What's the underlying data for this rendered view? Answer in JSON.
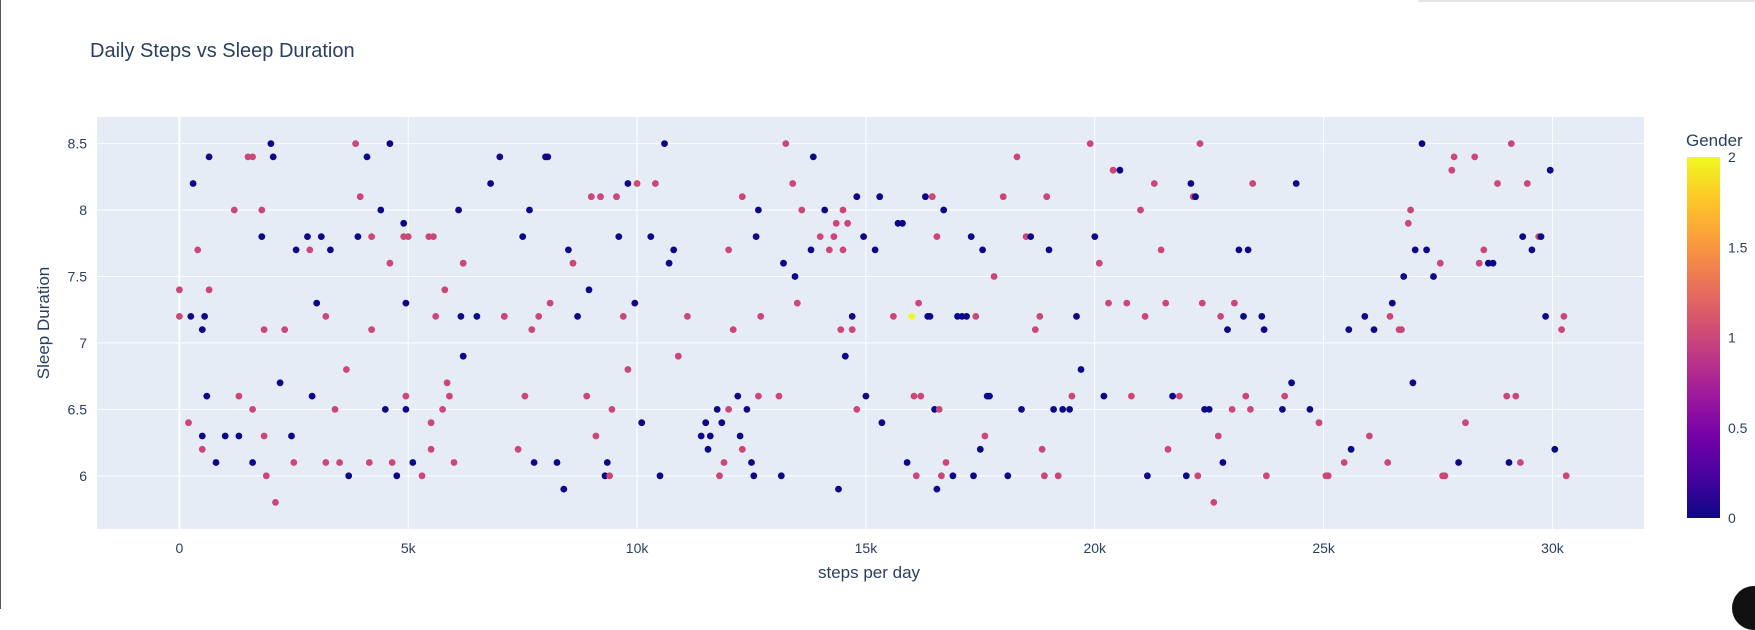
{
  "chart_data": {
    "type": "scatter",
    "title": "Daily Steps vs Sleep Duration",
    "xlabel": "steps per day",
    "ylabel": "Sleep Duration",
    "xlim": [
      -1800,
      32000
    ],
    "ylim": [
      5.6,
      8.7
    ],
    "x_ticks": [
      0,
      5000,
      10000,
      15000,
      20000,
      25000,
      30000
    ],
    "x_tick_labels": [
      "0",
      "5k",
      "10k",
      "15k",
      "20k",
      "25k",
      "30k"
    ],
    "y_ticks": [
      6,
      6.5,
      7,
      7.5,
      8,
      8.5
    ],
    "y_tick_labels": [
      "6",
      "6.5",
      "7",
      "7.5",
      "8",
      "8.5"
    ],
    "grid": true,
    "colorbar": {
      "title": "Gender",
      "range": [
        0,
        2
      ],
      "ticks": [
        0,
        0.5,
        1,
        1.5,
        2
      ],
      "tick_labels": [
        "0",
        "0.5",
        "1",
        "1.5",
        "2"
      ],
      "colors": [
        "#0d0887",
        "#46039f",
        "#7201a8",
        "#9c179e",
        "#bd3786",
        "#d8576b",
        "#ed7953",
        "#fb9f3a",
        "#fdca26",
        "#f0f921"
      ]
    },
    "marker_colors": {
      "0": "#0d0887",
      "1": "#cc4778",
      "2": "#f0f921"
    },
    "points": [
      [
        0,
        7.2,
        1
      ],
      [
        0,
        7.4,
        1
      ],
      [
        200,
        6.4,
        1
      ],
      [
        250,
        7.2,
        0
      ],
      [
        300,
        8.2,
        0
      ],
      [
        400,
        7.7,
        1
      ],
      [
        500,
        6.2,
        1
      ],
      [
        500,
        6.3,
        0
      ],
      [
        500,
        7.1,
        0
      ],
      [
        550,
        7.2,
        0
      ],
      [
        600,
        6.6,
        0
      ],
      [
        650,
        7.4,
        1
      ],
      [
        650,
        8.4,
        0
      ],
      [
        800,
        6.1,
        0
      ],
      [
        1000,
        6.3,
        0
      ],
      [
        1200,
        8.0,
        1
      ],
      [
        1300,
        6.6,
        1
      ],
      [
        1300,
        6.3,
        0
      ],
      [
        1500,
        8.4,
        1
      ],
      [
        1600,
        8.4,
        1
      ],
      [
        1600,
        6.5,
        1
      ],
      [
        1600,
        6.1,
        0
      ],
      [
        1800,
        8.0,
        1
      ],
      [
        1800,
        7.8,
        0
      ],
      [
        1850,
        7.1,
        1
      ],
      [
        1850,
        6.3,
        1
      ],
      [
        1900,
        6.0,
        1
      ],
      [
        2000,
        8.5,
        0
      ],
      [
        2050,
        8.4,
        0
      ],
      [
        2100,
        5.8,
        1
      ],
      [
        2200,
        6.7,
        0
      ],
      [
        2300,
        7.1,
        1
      ],
      [
        2450,
        6.3,
        0
      ],
      [
        2500,
        6.1,
        1
      ],
      [
        2550,
        7.7,
        0
      ],
      [
        2800,
        7.8,
        0
      ],
      [
        2850,
        7.7,
        1
      ],
      [
        2900,
        6.6,
        0
      ],
      [
        3000,
        7.3,
        0
      ],
      [
        3100,
        7.8,
        0
      ],
      [
        3200,
        6.1,
        1
      ],
      [
        3200,
        7.2,
        1
      ],
      [
        3300,
        7.7,
        0
      ],
      [
        3400,
        6.5,
        1
      ],
      [
        3500,
        6.1,
        1
      ],
      [
        3650,
        6.8,
        1
      ],
      [
        3700,
        6.0,
        0
      ],
      [
        3850,
        8.5,
        1
      ],
      [
        3900,
        7.8,
        0
      ],
      [
        3950,
        8.1,
        1
      ],
      [
        4100,
        8.4,
        0
      ],
      [
        4150,
        6.1,
        1
      ],
      [
        4200,
        7.8,
        1
      ],
      [
        4200,
        7.1,
        1
      ],
      [
        4400,
        8.0,
        0
      ],
      [
        4500,
        6.5,
        0
      ],
      [
        4600,
        8.5,
        0
      ],
      [
        4600,
        7.6,
        1
      ],
      [
        4650,
        6.1,
        1
      ],
      [
        4750,
        6.0,
        0
      ],
      [
        4900,
        7.8,
        1
      ],
      [
        4900,
        7.9,
        0
      ],
      [
        4950,
        7.3,
        0
      ],
      [
        4950,
        6.5,
        0
      ],
      [
        4950,
        6.6,
        1
      ],
      [
        5000,
        7.8,
        1
      ],
      [
        5100,
        6.1,
        0
      ],
      [
        5300,
        6.0,
        1
      ],
      [
        5450,
        7.8,
        1
      ],
      [
        5500,
        6.2,
        1
      ],
      [
        5500,
        6.4,
        1
      ],
      [
        5550,
        7.8,
        1
      ],
      [
        5600,
        7.2,
        1
      ],
      [
        5750,
        6.5,
        1
      ],
      [
        5800,
        7.4,
        1
      ],
      [
        5850,
        6.7,
        1
      ],
      [
        5900,
        6.6,
        1
      ],
      [
        6000,
        6.1,
        1
      ],
      [
        6100,
        8.0,
        0
      ],
      [
        6150,
        7.2,
        0
      ],
      [
        6200,
        6.9,
        0
      ],
      [
        6200,
        7.6,
        1
      ],
      [
        6500,
        7.2,
        0
      ],
      [
        6800,
        8.2,
        0
      ],
      [
        7000,
        8.4,
        0
      ],
      [
        7100,
        7.2,
        1
      ],
      [
        7100,
        7.2,
        1
      ],
      [
        7400,
        6.2,
        1
      ],
      [
        7500,
        7.8,
        0
      ],
      [
        7550,
        6.6,
        1
      ],
      [
        7650,
        8.0,
        0
      ],
      [
        7700,
        7.1,
        1
      ],
      [
        7750,
        6.1,
        0
      ],
      [
        7850,
        7.2,
        1
      ],
      [
        8000,
        8.4,
        0
      ],
      [
        8050,
        8.4,
        0
      ],
      [
        8100,
        7.3,
        1
      ],
      [
        8250,
        6.1,
        0
      ],
      [
        8400,
        5.9,
        0
      ],
      [
        8500,
        7.7,
        0
      ],
      [
        8600,
        7.6,
        1
      ],
      [
        8700,
        7.2,
        0
      ],
      [
        8900,
        6.6,
        1
      ],
      [
        8950,
        7.4,
        0
      ],
      [
        9000,
        8.1,
        1
      ],
      [
        9100,
        6.3,
        1
      ],
      [
        9200,
        8.1,
        1
      ],
      [
        9300,
        6.0,
        0
      ],
      [
        9350,
        6.1,
        0
      ],
      [
        9400,
        6.0,
        1
      ],
      [
        9450,
        6.5,
        1
      ],
      [
        9550,
        8.1,
        1
      ],
      [
        9600,
        7.8,
        0
      ],
      [
        9700,
        7.2,
        1
      ],
      [
        9800,
        8.2,
        0
      ],
      [
        9800,
        6.8,
        1
      ],
      [
        9950,
        7.3,
        0
      ],
      [
        10000,
        8.2,
        1
      ],
      [
        10100,
        6.4,
        0
      ],
      [
        10300,
        7.8,
        0
      ],
      [
        10400,
        8.2,
        1
      ],
      [
        10500,
        6.0,
        0
      ],
      [
        10600,
        8.5,
        0
      ],
      [
        10700,
        7.6,
        0
      ],
      [
        10800,
        7.7,
        0
      ],
      [
        10900,
        6.9,
        1
      ],
      [
        11100,
        7.2,
        1
      ],
      [
        11400,
        6.3,
        0
      ],
      [
        11500,
        6.4,
        0
      ],
      [
        11550,
        6.2,
        0
      ],
      [
        11600,
        6.3,
        0
      ],
      [
        11750,
        6.5,
        0
      ],
      [
        11800,
        6.0,
        1
      ],
      [
        11850,
        6.4,
        0
      ],
      [
        11900,
        6.1,
        1
      ],
      [
        12000,
        7.7,
        1
      ],
      [
        12000,
        6.5,
        1
      ],
      [
        12100,
        7.1,
        1
      ],
      [
        12200,
        6.6,
        0
      ],
      [
        12250,
        6.3,
        0
      ],
      [
        12300,
        8.1,
        1
      ],
      [
        12300,
        6.2,
        1
      ],
      [
        12400,
        6.5,
        0
      ],
      [
        12500,
        6.1,
        0
      ],
      [
        12550,
        6.0,
        0
      ],
      [
        12600,
        7.8,
        0
      ],
      [
        12650,
        8.0,
        0
      ],
      [
        12650,
        6.6,
        1
      ],
      [
        12700,
        7.2,
        1
      ],
      [
        13100,
        6.6,
        1
      ],
      [
        13150,
        6.0,
        0
      ],
      [
        13200,
        7.6,
        0
      ],
      [
        13250,
        8.5,
        1
      ],
      [
        13400,
        8.2,
        1
      ],
      [
        13450,
        7.5,
        0
      ],
      [
        13500,
        7.3,
        1
      ],
      [
        13600,
        8.0,
        1
      ],
      [
        13800,
        7.7,
        0
      ],
      [
        13850,
        8.4,
        0
      ],
      [
        14000,
        7.8,
        1
      ],
      [
        14100,
        8.0,
        0
      ],
      [
        14200,
        7.7,
        1
      ],
      [
        14300,
        7.8,
        1
      ],
      [
        14350,
        7.9,
        1
      ],
      [
        14400,
        5.9,
        0
      ],
      [
        14450,
        7.1,
        1
      ],
      [
        14500,
        7.7,
        1
      ],
      [
        14500,
        8.0,
        1
      ],
      [
        14550,
        6.9,
        0
      ],
      [
        14600,
        7.9,
        1
      ],
      [
        14700,
        7.1,
        1
      ],
      [
        14700,
        7.2,
        0
      ],
      [
        14800,
        8.1,
        0
      ],
      [
        14800,
        6.5,
        1
      ],
      [
        14950,
        7.8,
        0
      ],
      [
        15000,
        6.6,
        0
      ],
      [
        15200,
        7.7,
        0
      ],
      [
        15300,
        8.1,
        0
      ],
      [
        15350,
        6.4,
        0
      ],
      [
        15600,
        7.2,
        1
      ],
      [
        15700,
        7.9,
        0
      ],
      [
        15800,
        7.9,
        0
      ],
      [
        15900,
        6.1,
        0
      ],
      [
        16000,
        7.2,
        2
      ],
      [
        16050,
        6.6,
        1
      ],
      [
        16100,
        6.0,
        1
      ],
      [
        16150,
        7.3,
        1
      ],
      [
        16200,
        6.6,
        1
      ],
      [
        16300,
        8.1,
        0
      ],
      [
        16350,
        7.2,
        0
      ],
      [
        16400,
        7.2,
        0
      ],
      [
        16450,
        8.1,
        1
      ],
      [
        16500,
        6.5,
        0
      ],
      [
        16550,
        7.8,
        1
      ],
      [
        16550,
        5.9,
        0
      ],
      [
        16600,
        6.5,
        1
      ],
      [
        16650,
        6.0,
        1
      ],
      [
        16700,
        8.0,
        0
      ],
      [
        16750,
        6.1,
        1
      ],
      [
        16900,
        6.0,
        0
      ],
      [
        17000,
        7.2,
        0
      ],
      [
        17100,
        7.2,
        0
      ],
      [
        17200,
        7.2,
        0
      ],
      [
        17300,
        7.8,
        0
      ],
      [
        17350,
        6.0,
        0
      ],
      [
        17400,
        7.2,
        1
      ],
      [
        17500,
        6.2,
        0
      ],
      [
        17550,
        7.7,
        0
      ],
      [
        17600,
        6.3,
        1
      ],
      [
        17650,
        6.6,
        0
      ],
      [
        17700,
        6.6,
        0
      ],
      [
        17800,
        7.5,
        1
      ],
      [
        18000,
        8.1,
        1
      ],
      [
        18100,
        6.0,
        0
      ],
      [
        18300,
        8.4,
        1
      ],
      [
        18400,
        6.5,
        0
      ],
      [
        18500,
        7.8,
        1
      ],
      [
        18600,
        7.8,
        0
      ],
      [
        18700,
        7.1,
        1
      ],
      [
        18800,
        7.2,
        1
      ],
      [
        18850,
        6.2,
        1
      ],
      [
        18900,
        6.0,
        1
      ],
      [
        18950,
        8.1,
        1
      ],
      [
        19000,
        7.7,
        0
      ],
      [
        19100,
        6.5,
        0
      ],
      [
        19200,
        6.0,
        1
      ],
      [
        19300,
        6.5,
        0
      ],
      [
        19450,
        6.5,
        0
      ],
      [
        19500,
        6.6,
        1
      ],
      [
        19600,
        7.2,
        0
      ],
      [
        19700,
        6.8,
        0
      ],
      [
        19900,
        8.5,
        1
      ],
      [
        20000,
        7.8,
        0
      ],
      [
        20100,
        7.6,
        1
      ],
      [
        20200,
        6.6,
        0
      ],
      [
        20300,
        7.3,
        1
      ],
      [
        20400,
        8.3,
        1
      ],
      [
        20550,
        8.3,
        0
      ],
      [
        20700,
        7.3,
        1
      ],
      [
        20800,
        6.6,
        1
      ],
      [
        21000,
        8.0,
        1
      ],
      [
        21100,
        7.2,
        1
      ],
      [
        21150,
        6.0,
        0
      ],
      [
        21300,
        8.2,
        1
      ],
      [
        21450,
        7.7,
        1
      ],
      [
        21550,
        7.3,
        1
      ],
      [
        21600,
        6.2,
        1
      ],
      [
        21700,
        6.6,
        0
      ],
      [
        21850,
        6.6,
        1
      ],
      [
        22000,
        6.0,
        0
      ],
      [
        22100,
        8.2,
        0
      ],
      [
        22150,
        8.1,
        1
      ],
      [
        22200,
        8.1,
        0
      ],
      [
        22250,
        6.0,
        1
      ],
      [
        22300,
        8.5,
        1
      ],
      [
        22350,
        7.3,
        1
      ],
      [
        22400,
        6.5,
        0
      ],
      [
        22500,
        6.5,
        0
      ],
      [
        22600,
        5.8,
        1
      ],
      [
        22700,
        6.3,
        1
      ],
      [
        22750,
        7.2,
        1
      ],
      [
        22800,
        6.1,
        0
      ],
      [
        22900,
        7.1,
        0
      ],
      [
        23000,
        6.5,
        1
      ],
      [
        23050,
        7.3,
        1
      ],
      [
        23150,
        7.7,
        0
      ],
      [
        23250,
        7.2,
        0
      ],
      [
        23300,
        6.6,
        1
      ],
      [
        23350,
        7.7,
        0
      ],
      [
        23400,
        6.5,
        1
      ],
      [
        23450,
        8.2,
        1
      ],
      [
        23650,
        7.2,
        0
      ],
      [
        23700,
        7.1,
        0
      ],
      [
        23750,
        6.0,
        1
      ],
      [
        24100,
        6.5,
        0
      ],
      [
        24150,
        6.6,
        1
      ],
      [
        24300,
        6.7,
        0
      ],
      [
        24400,
        8.2,
        0
      ],
      [
        24700,
        6.5,
        0
      ],
      [
        24900,
        6.4,
        1
      ],
      [
        25050,
        6.0,
        1
      ],
      [
        25100,
        6.0,
        1
      ],
      [
        25450,
        6.1,
        1
      ],
      [
        25550,
        7.1,
        0
      ],
      [
        25600,
        6.2,
        0
      ],
      [
        25900,
        7.2,
        0
      ],
      [
        26000,
        6.3,
        1
      ],
      [
        26100,
        7.1,
        0
      ],
      [
        26400,
        6.1,
        1
      ],
      [
        26450,
        7.2,
        1
      ],
      [
        26500,
        7.3,
        0
      ],
      [
        26650,
        7.1,
        1
      ],
      [
        26700,
        7.1,
        1
      ],
      [
        26750,
        7.5,
        0
      ],
      [
        26850,
        7.9,
        1
      ],
      [
        26900,
        8.0,
        1
      ],
      [
        26950,
        6.7,
        0
      ],
      [
        27000,
        7.7,
        0
      ],
      [
        27150,
        8.5,
        0
      ],
      [
        27250,
        7.7,
        0
      ],
      [
        27400,
        7.5,
        0
      ],
      [
        27550,
        7.6,
        1
      ],
      [
        27600,
        6.0,
        1
      ],
      [
        27650,
        6.0,
        1
      ],
      [
        27800,
        8.3,
        1
      ],
      [
        27850,
        8.4,
        1
      ],
      [
        27950,
        6.1,
        0
      ],
      [
        28100,
        6.4,
        1
      ],
      [
        28300,
        8.4,
        1
      ],
      [
        28400,
        7.6,
        1
      ],
      [
        28500,
        7.7,
        1
      ],
      [
        28600,
        7.6,
        0
      ],
      [
        28700,
        7.6,
        0
      ],
      [
        28800,
        8.2,
        1
      ],
      [
        29000,
        6.6,
        1
      ],
      [
        29050,
        6.1,
        0
      ],
      [
        29100,
        8.5,
        1
      ],
      [
        29200,
        6.6,
        1
      ],
      [
        29300,
        6.1,
        1
      ],
      [
        29350,
        7.8,
        0
      ],
      [
        29450,
        8.2,
        1
      ],
      [
        29550,
        7.7,
        0
      ],
      [
        29700,
        7.8,
        1
      ],
      [
        29750,
        7.8,
        0
      ],
      [
        29850,
        7.2,
        0
      ],
      [
        29950,
        8.3,
        0
      ],
      [
        30050,
        6.2,
        0
      ],
      [
        30200,
        7.1,
        1
      ],
      [
        30250,
        7.2,
        1
      ],
      [
        30300,
        6.0,
        1
      ]
    ]
  }
}
